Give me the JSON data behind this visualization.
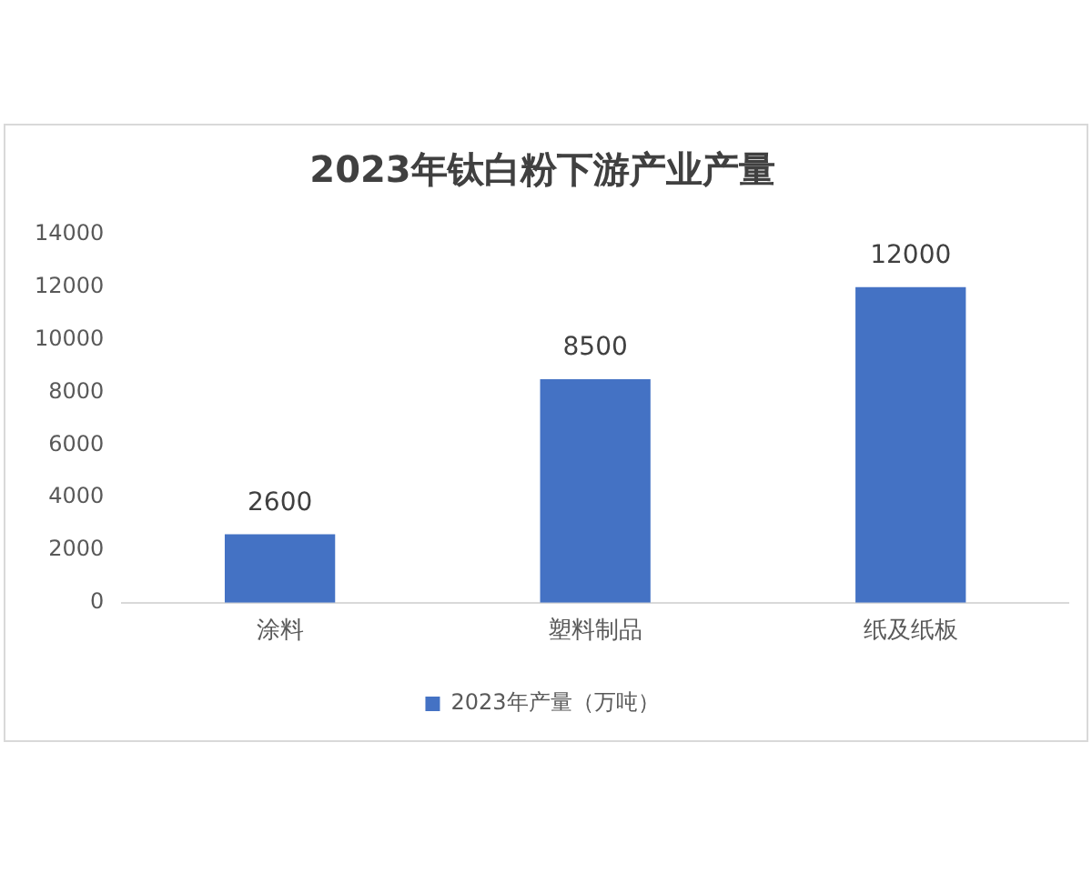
{
  "chart_data": {
    "type": "bar",
    "title": "2023年钛白粉下游产业产量",
    "categories": [
      "涂料",
      "塑料制品",
      "纸及纸板"
    ],
    "series": [
      {
        "name": "2023年产量（万吨）",
        "color": "#4472c4",
        "values": [
          2600,
          8500,
          12000
        ]
      }
    ],
    "ylim": [
      0,
      14000
    ],
    "yticks": [
      0,
      2000,
      4000,
      6000,
      8000,
      10000,
      12000,
      14000
    ],
    "grid": false,
    "legend": "bottom",
    "data_labels": true
  }
}
